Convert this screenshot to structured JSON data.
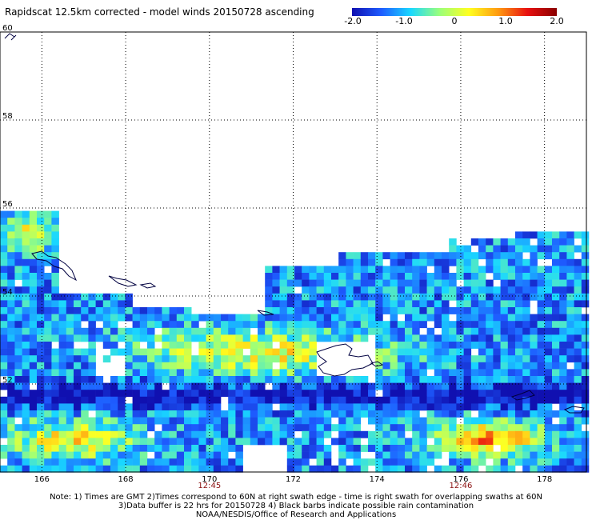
{
  "title": "Rapidscat 12.5km corrected - model winds 20150728 ascending",
  "colorbar": {
    "ticks": [
      "-2.0",
      "-1.0",
      "0",
      "1.0",
      "2.0"
    ],
    "stops": [
      "#1010b0",
      "#1e5cff",
      "#19d8ff",
      "#9bff7a",
      "#ffff20",
      "#ff9a10",
      "#e81010",
      "#8a0000"
    ]
  },
  "map": {
    "lon_range": [
      165,
      179
    ],
    "lat_range": [
      50,
      60
    ],
    "lon_ticks": [
      "166",
      "168",
      "170",
      "172",
      "174",
      "176",
      "178"
    ],
    "lat_ticks": [
      "52",
      "54",
      "56",
      "58",
      "60"
    ],
    "pass_times": [
      {
        "label": "12:45",
        "lon": 170
      },
      {
        "label": "12:46",
        "lon": 176
      }
    ]
  },
  "notes": {
    "line1": "Note: 1) Times are GMT 2)Times correspond to 60N at right swath edge - time is right swath for overlapping swaths at 60N",
    "line2": "3)Data buffer is 22 hrs for 20150728 4) Black barbs indicate possible rain contamination",
    "line3": "NOAA/NESDIS/Office of Research and Applications"
  }
}
